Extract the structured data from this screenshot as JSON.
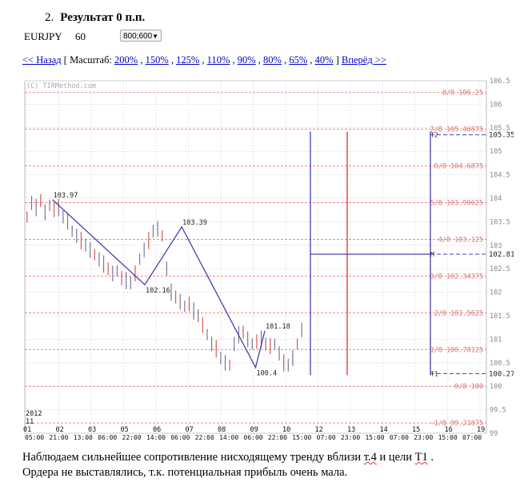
{
  "header": {
    "number": "2.",
    "title": "Результат 0 п.п."
  },
  "instrument": {
    "symbol": "EURJPY",
    "timeframe": "60",
    "size_value": "800;600"
  },
  "nav": {
    "back": "<< Назад",
    "scale_open": "[ Масштаб:",
    "scales": [
      "200%",
      "150%",
      "125%",
      "110%",
      "90%",
      "80%",
      "65%",
      "40%"
    ],
    "scale_close": "]",
    "forward": "Вперёд >>"
  },
  "note": {
    "line1_a": "Наблюдаем сильнейшее сопротивление нисходящему тренду вблизи ",
    "line1_b": "т.4",
    "line1_c": " и цели ",
    "line1_d": "Т1",
    "line1_e": " .",
    "line2": "Ордера не выставлялись, т.к. потенциальная прибыль очень мала."
  },
  "chart_data": {
    "type": "line",
    "watermark": "(C) TIRMethod.com",
    "ylim": [
      99,
      106.5
    ],
    "y_ticks": [
      "106.5",
      "106",
      "105.5",
      "105",
      "104.5",
      "104",
      "103.5",
      "103",
      "102.5",
      "102",
      "101.5",
      "101",
      "100.5",
      "100",
      "99.5",
      "99"
    ],
    "x_labels_top": [
      "01",
      "02",
      "03",
      "05",
      "06",
      "07",
      "08",
      "09",
      "10",
      "12",
      "13",
      "14",
      "15",
      "16",
      "19"
    ],
    "x_labels_bottom": [
      "05:00",
      "21:00",
      "13:00",
      "06:00",
      "22:00",
      "14:00",
      "06:00",
      "22:00",
      "14:00",
      "06:00",
      "22:00",
      "15:00",
      "07:00",
      "23:00",
      "15:00",
      "07:00",
      "23:00",
      "15:00",
      "07:00"
    ],
    "x_year": "2012",
    "x_month": "11",
    "murray_levels": [
      {
        "label": "8/8 106.25",
        "value": 106.25
      },
      {
        "label": "7/8 105.46875",
        "value": 105.46875
      },
      {
        "label": "6/8 104.6875",
        "value": 104.6875
      },
      {
        "label": "5/8 103.90625",
        "value": 103.90625
      },
      {
        "label": "4/8 103.125",
        "value": 103.125
      },
      {
        "label": "3/8 102.34375",
        "value": 102.34375
      },
      {
        "label": "2/8 101.5625",
        "value": 101.5625
      },
      {
        "label": "1/8 100.78125",
        "value": 100.78125
      },
      {
        "label": "0/8 100",
        "value": 100
      },
      {
        "label": "-1/8 99.21875",
        "value": 99.21875
      }
    ],
    "zigzag": [
      {
        "x": 0.06,
        "value": 103.97,
        "label": "103.97"
      },
      {
        "x": 0.26,
        "value": 102.16,
        "label": "102.16"
      },
      {
        "x": 0.34,
        "value": 103.39,
        "label": "103.39"
      },
      {
        "x": 0.5,
        "value": 100.4,
        "label": "100.4"
      },
      {
        "x": 0.52,
        "value": 101.18,
        "label": "101.18"
      }
    ],
    "targets": [
      {
        "name": "T2",
        "value": 105.35,
        "label": "105.35"
      },
      {
        "name": "M",
        "value": 102.81,
        "label": "102.81"
      },
      {
        "name": "T1",
        "value": 100.27,
        "label": "100.27"
      }
    ],
    "price_series": [
      103.6,
      103.9,
      103.8,
      103.95,
      103.7,
      103.85,
      103.75,
      103.8,
      103.6,
      103.5,
      103.3,
      103.2,
      103.1,
      103.0,
      102.9,
      102.8,
      102.7,
      102.6,
      102.5,
      102.4,
      102.45,
      102.3,
      102.25,
      102.2,
      102.4,
      102.7,
      102.9,
      103.1,
      103.3,
      103.35,
      103.2,
      102.5,
      102.0,
      101.9,
      101.8,
      101.7,
      101.75,
      101.6,
      101.5,
      101.3,
      101.1,
      100.9,
      100.8,
      100.6,
      100.5,
      100.45,
      100.9,
      101.1,
      101.15,
      101.0,
      100.9,
      100.95,
      101.0,
      100.9,
      100.85,
      100.9,
      100.7,
      100.5,
      100.45,
      100.6,
      100.9,
      101.2
    ]
  }
}
